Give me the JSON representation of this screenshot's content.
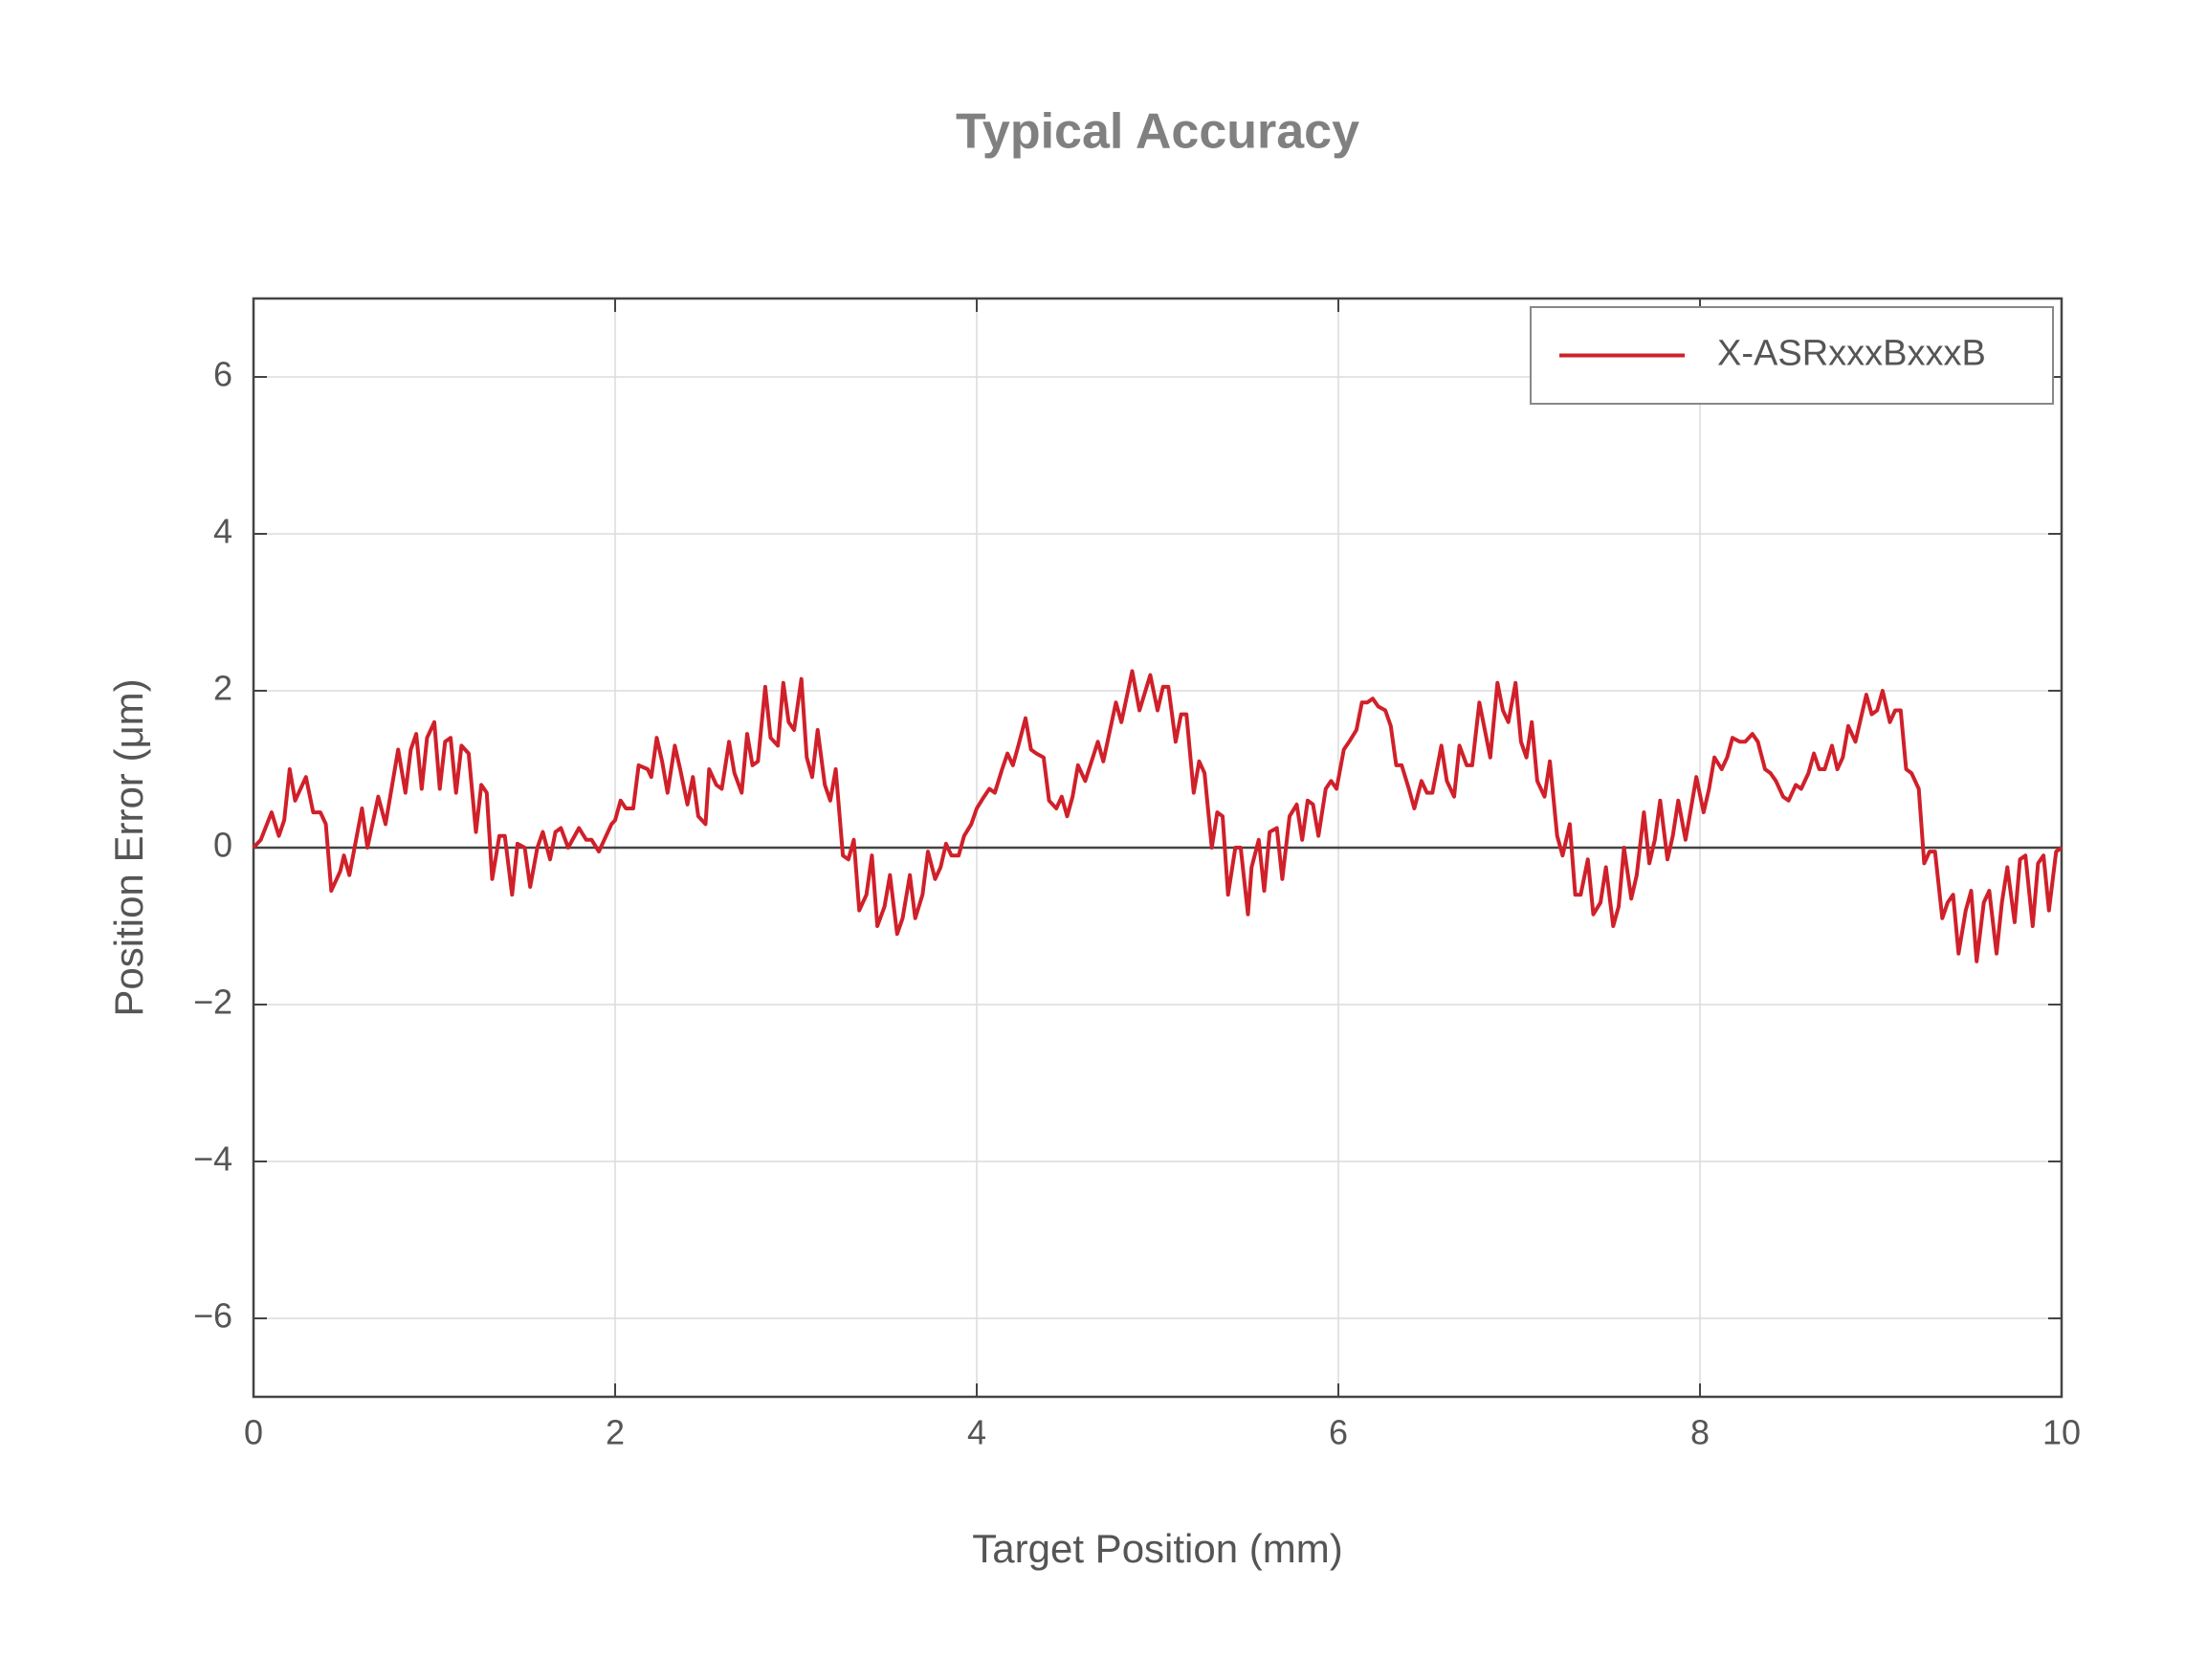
{
  "chart_data": {
    "type": "line",
    "title": "Typical Accuracy",
    "x_label": "Target Position (mm)",
    "y_label": "Position Error (μm)",
    "xlim": [
      0,
      10
    ],
    "xticks": [
      0,
      2,
      4,
      6,
      8,
      10
    ],
    "ylim": [
      -7,
      7
    ],
    "yticks": [
      {
        "value": -6,
        "label": "−6"
      },
      {
        "value": -4,
        "label": "−4"
      },
      {
        "value": -2,
        "label": "−2"
      },
      0,
      2,
      4,
      6
    ],
    "grid": true,
    "legend": "upper right",
    "x": [
      0,
      0.04,
      0.1,
      0.14,
      0.17,
      0.2,
      0.23,
      0.29,
      0.33,
      0.37,
      0.4,
      0.43,
      0.48,
      0.5,
      0.53,
      0.6,
      0.63,
      0.69,
      0.73,
      0.8,
      0.84,
      0.87,
      0.9,
      0.93,
      0.96,
      1.0,
      1.03,
      1.06,
      1.09,
      1.12,
      1.15,
      1.19,
      1.23,
      1.26,
      1.29,
      1.32,
      1.36,
      1.39,
      1.43,
      1.46,
      1.5,
      1.53,
      1.57,
      1.6,
      1.64,
      1.67,
      1.7,
      1.74,
      1.8,
      1.84,
      1.87,
      1.91,
      1.98,
      2.0,
      2.03,
      2.06,
      2.1,
      2.13,
      2.18,
      2.2,
      2.23,
      2.26,
      2.29,
      2.33,
      2.36,
      2.4,
      2.43,
      2.46,
      2.5,
      2.52,
      2.56,
      2.59,
      2.63,
      2.66,
      2.7,
      2.73,
      2.76,
      2.79,
      2.83,
      2.86,
      2.9,
      2.93,
      2.96,
      2.99,
      3.03,
      3.06,
      3.09,
      3.12,
      3.16,
      3.19,
      3.22,
      3.26,
      3.29,
      3.32,
      3.35,
      3.39,
      3.42,
      3.45,
      3.49,
      3.52,
      3.56,
      3.59,
      3.63,
      3.66,
      3.7,
      3.73,
      3.77,
      3.8,
      3.83,
      3.86,
      3.9,
      3.93,
      3.97,
      4.0,
      4.04,
      4.07,
      4.1,
      4.14,
      4.17,
      4.2,
      4.23,
      4.27,
      4.3,
      4.33,
      4.37,
      4.4,
      4.44,
      4.47,
      4.5,
      4.53,
      4.56,
      4.6,
      4.67,
      4.7,
      4.77,
      4.8,
      4.86,
      4.9,
      4.96,
      5.0,
      5.03,
      5.06,
      5.1,
      5.13,
      5.16,
      5.2,
      5.23,
      5.26,
      5.3,
      5.33,
      5.36,
      5.39,
      5.43,
      5.46,
      5.5,
      5.52,
      5.56,
      5.59,
      5.62,
      5.66,
      5.69,
      5.73,
      5.77,
      5.8,
      5.83,
      5.86,
      5.89,
      5.93,
      5.96,
      5.99,
      6.03,
      6.06,
      6.1,
      6.13,
      6.16,
      6.19,
      6.22,
      6.26,
      6.29,
      6.32,
      6.35,
      6.39,
      6.42,
      6.46,
      6.49,
      6.52,
      6.57,
      6.6,
      6.64,
      6.67,
      6.71,
      6.74,
      6.78,
      6.81,
      6.84,
      6.88,
      6.91,
      6.94,
      6.98,
      7.01,
      7.04,
      7.07,
      7.1,
      7.14,
      7.17,
      7.21,
      7.24,
      7.28,
      7.31,
      7.34,
      7.38,
      7.41,
      7.45,
      7.48,
      7.52,
      7.55,
      7.58,
      7.62,
      7.65,
      7.69,
      7.72,
      7.75,
      7.78,
      7.82,
      7.85,
      7.88,
      7.92,
      7.95,
      7.98,
      8.02,
      8.05,
      8.08,
      8.12,
      8.15,
      8.18,
      8.22,
      8.25,
      8.29,
      8.32,
      8.36,
      8.39,
      8.42,
      8.46,
      8.49,
      8.53,
      8.56,
      8.6,
      8.63,
      8.66,
      8.69,
      8.73,
      8.76,
      8.79,
      8.82,
      8.86,
      8.89,
      8.92,
      8.95,
      8.98,
      9.01,
      9.05,
      9.08,
      9.11,
      9.14,
      9.17,
      9.21,
      9.24,
      9.27,
      9.3,
      9.34,
      9.37,
      9.4,
      9.43,
      9.47,
      9.5,
      9.53,
      9.57,
      9.6,
      9.64,
      9.67,
      9.7,
      9.74,
      9.77,
      9.8,
      9.84,
      9.87,
      9.9,
      9.93,
      9.97,
      10
    ],
    "series": [
      {
        "name": "X-ASRxxxBxxxB",
        "color": "#d0202a",
        "values": [
          0,
          0.1,
          0.45,
          0.15,
          0.35,
          1.0,
          0.6,
          0.9,
          0.45,
          0.45,
          0.3,
          -0.55,
          -0.3,
          -0.1,
          -0.35,
          0.5,
          0.0,
          0.65,
          0.3,
          1.25,
          0.7,
          1.25,
          1.45,
          0.75,
          1.4,
          1.6,
          0.75,
          1.35,
          1.4,
          0.7,
          1.3,
          1.2,
          0.2,
          0.8,
          0.7,
          -0.4,
          0.15,
          0.15,
          -0.6,
          0.05,
          0.0,
          -0.5,
          0.0,
          0.2,
          -0.15,
          0.2,
          0.25,
          0.0,
          0.25,
          0.1,
          0.1,
          -0.05,
          0.3,
          0.35,
          0.6,
          0.5,
          0.5,
          1.05,
          1.0,
          0.9,
          1.4,
          1.1,
          0.7,
          1.3,
          1.0,
          0.55,
          0.9,
          0.4,
          0.3,
          1.0,
          0.8,
          0.75,
          1.35,
          0.95,
          0.7,
          1.45,
          1.05,
          1.1,
          2.05,
          1.4,
          1.3,
          2.1,
          1.6,
          1.5,
          2.15,
          1.15,
          0.9,
          1.5,
          0.8,
          0.6,
          1.0,
          -0.1,
          -0.15,
          0.1,
          -0.8,
          -0.6,
          -0.1,
          -1.0,
          -0.75,
          -0.35,
          -1.1,
          -0.9,
          -0.35,
          -0.9,
          -0.6,
          -0.05,
          -0.4,
          -0.25,
          0.05,
          -0.1,
          -0.1,
          0.15,
          0.3,
          0.5,
          0.65,
          0.75,
          0.7,
          1.0,
          1.2,
          1.05,
          1.3,
          1.65,
          1.25,
          1.2,
          1.15,
          0.6,
          0.5,
          0.65,
          0.4,
          0.65,
          1.05,
          0.85,
          1.35,
          1.1,
          1.85,
          1.6,
          2.25,
          1.75,
          2.2,
          1.75,
          2.05,
          2.05,
          1.35,
          1.7,
          1.7,
          0.7,
          1.1,
          0.95,
          0.0,
          0.45,
          0.4,
          -0.6,
          0.0,
          0.0,
          -0.85,
          -0.25,
          0.1,
          -0.55,
          0.2,
          0.25,
          -0.4,
          0.4,
          0.55,
          0.1,
          0.6,
          0.55,
          0.15,
          0.75,
          0.85,
          0.75,
          1.25,
          1.35,
          1.5,
          1.85,
          1.85,
          1.9,
          1.8,
          1.75,
          1.55,
          1.05,
          1.05,
          0.75,
          0.5,
          0.85,
          0.7,
          0.7,
          1.3,
          0.85,
          0.65,
          1.3,
          1.05,
          1.05,
          1.85,
          1.5,
          1.15,
          2.1,
          1.75,
          1.6,
          2.1,
          1.35,
          1.15,
          1.6,
          0.85,
          0.65,
          1.1,
          0.15,
          -0.1,
          0.3,
          -0.6,
          -0.6,
          -0.15,
          -0.85,
          -0.7,
          -0.25,
          -1.0,
          -0.75,
          0.0,
          -0.65,
          -0.35,
          0.45,
          -0.2,
          0.1,
          0.6,
          -0.15,
          0.15,
          0.6,
          0.1,
          0.5,
          0.9,
          0.45,
          0.75,
          1.15,
          1.0,
          1.15,
          1.4,
          1.35,
          1.35,
          1.45,
          1.35,
          1.0,
          0.95,
          0.85,
          0.65,
          0.6,
          0.8,
          0.75,
          0.95,
          1.2,
          1.0,
          1.0,
          1.3,
          1.0,
          1.15,
          1.55,
          1.35,
          1.65,
          1.95,
          1.7,
          1.75,
          2.0,
          1.6,
          1.75,
          1.75,
          1.0,
          0.95,
          0.75,
          -0.2,
          -0.05,
          -0.05,
          -0.9,
          -0.7,
          -0.6,
          -1.35,
          -0.8,
          -0.55,
          -1.45,
          -0.7,
          -0.55,
          -1.35,
          -0.7,
          -0.25,
          -0.95,
          -0.15,
          -0.1,
          -1.0,
          -0.2,
          -0.1,
          -0.8,
          -0.05,
          0.0
        ]
      }
    ]
  }
}
